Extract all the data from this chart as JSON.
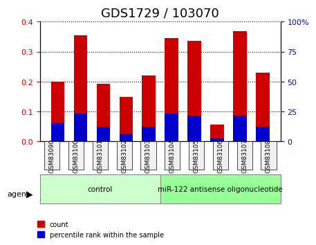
{
  "title": "GDS1729 / 103070",
  "samples": [
    "GSM83090",
    "GSM83100",
    "GSM83101",
    "GSM83102",
    "GSM83103",
    "GSM83104",
    "GSM83105",
    "GSM83106",
    "GSM83107",
    "GSM83108"
  ],
  "red_values": [
    0.2,
    0.355,
    0.193,
    0.148,
    0.22,
    0.345,
    0.335,
    0.055,
    0.368,
    0.23
  ],
  "blue_values": [
    0.06,
    0.093,
    0.048,
    0.022,
    0.048,
    0.093,
    0.085,
    0.01,
    0.085,
    0.048
  ],
  "red_color": "#cc0000",
  "blue_color": "#0000cc",
  "left_ylim": [
    0,
    0.4
  ],
  "right_ylim": [
    0,
    100
  ],
  "left_yticks": [
    0,
    0.1,
    0.2,
    0.3,
    0.4
  ],
  "right_yticks": [
    0,
    25,
    50,
    75,
    100
  ],
  "right_yticklabels": [
    "0",
    "25",
    "50",
    "75",
    "100%"
  ],
  "groups": [
    {
      "label": "control",
      "start": 0,
      "end": 5,
      "color": "#ccffcc"
    },
    {
      "label": "miR-122 antisense oligonucleotide",
      "start": 5,
      "end": 10,
      "color": "#99ff99"
    }
  ],
  "agent_label": "agent",
  "legend_items": [
    {
      "label": "count",
      "color": "#cc0000"
    },
    {
      "label": "percentile rank within the sample",
      "color": "#0000cc"
    }
  ],
  "bar_width": 0.6,
  "grid_color": "black",
  "grid_linestyle": "dotted",
  "bg_color": "#f0f0f0",
  "title_fontsize": 13,
  "tick_fontsize": 8,
  "label_fontsize": 9
}
